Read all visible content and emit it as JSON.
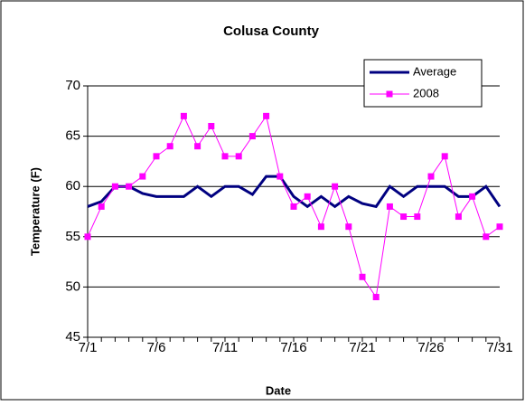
{
  "chart_data": {
    "type": "line",
    "title": "Colusa County",
    "x_label": "Date",
    "y_label": "Temperature (F)",
    "categories": [
      "7/1",
      null,
      null,
      null,
      null,
      "7/6",
      null,
      null,
      null,
      null,
      "7/11",
      null,
      null,
      null,
      null,
      "7/16",
      null,
      null,
      null,
      null,
      "7/21",
      null,
      null,
      null,
      null,
      "7/26",
      null,
      null,
      null,
      null,
      "7/31"
    ],
    "series": [
      {
        "name": "Average",
        "color": "#000080",
        "values": [
          58,
          58.5,
          60,
          60,
          59.3,
          59,
          59,
          59,
          60,
          59,
          60,
          60,
          59.2,
          61,
          61,
          59,
          58,
          59,
          58,
          59,
          58.3,
          58,
          60,
          59,
          60,
          60,
          60,
          59,
          59,
          60,
          58
        ]
      },
      {
        "name": "2008",
        "color": "#ff00ff",
        "values": [
          55,
          58,
          60,
          60,
          61,
          63,
          64,
          67,
          64,
          66,
          63,
          63,
          65,
          67,
          61,
          58,
          59,
          56,
          60,
          56,
          51,
          49,
          58,
          57,
          57,
          61,
          63,
          57,
          59,
          55,
          56
        ]
      }
    ],
    "ylim": [
      45,
      70
    ],
    "yticks": [
      45,
      50,
      55,
      60,
      65,
      70
    ],
    "grid": true,
    "legend": "top-right"
  }
}
